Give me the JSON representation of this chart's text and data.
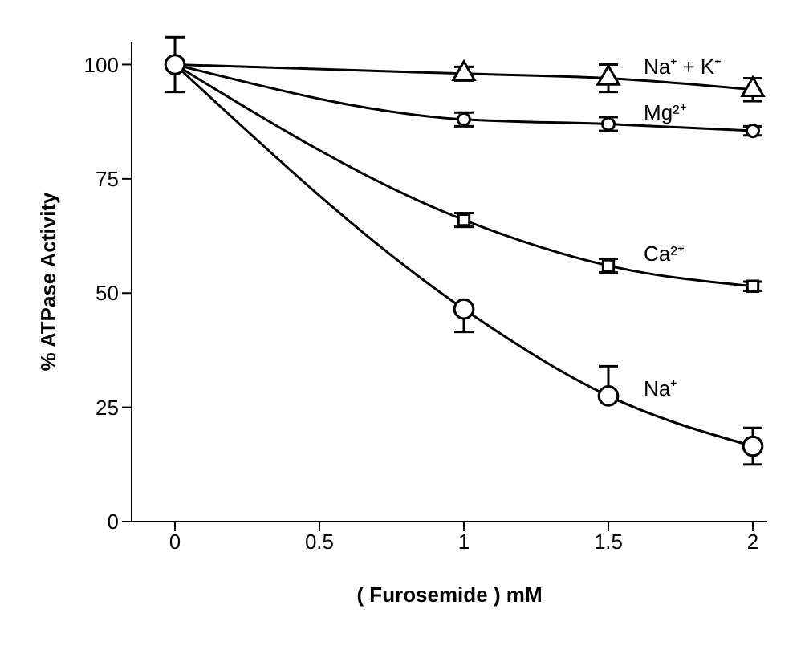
{
  "chart_data": {
    "type": "line",
    "xlabel": "( Furosemide ) mM",
    "ylabel": "% ATPase Activity",
    "x": [
      0,
      1,
      1.5,
      2
    ],
    "xlim": [
      -0.15,
      2.05
    ],
    "xticks": [
      0,
      0.5,
      1,
      1.5,
      2
    ],
    "ylim": [
      0,
      105
    ],
    "yticks": [
      0,
      25,
      50,
      75,
      100
    ],
    "grid": false,
    "line_style": "solid",
    "series": [
      {
        "name": "Na⁺",
        "color": "#000000",
        "marker": "circle",
        "values": [
          100,
          46.5,
          27.5,
          16.5
        ],
        "errors": [
          6,
          [
            41.5,
            46.5
          ],
          [
            27.5,
            34
          ],
          4
        ]
      },
      {
        "name": "Na⁺ + K⁺",
        "color": "#000000",
        "marker": "triangle",
        "values": [
          100,
          98,
          97,
          94.5
        ],
        "errors": [
          null,
          1.5,
          3,
          2.5
        ]
      },
      {
        "name": "Mg²⁺",
        "color": "#000000",
        "marker": "circle",
        "values": [
          100,
          88,
          87,
          85.5
        ],
        "errors": [
          null,
          1.5,
          1.5,
          1
        ]
      },
      {
        "name": "Ca²⁺",
        "color": "#000000",
        "marker": "square",
        "values": [
          100,
          66,
          56,
          51.5
        ],
        "errors": [
          null,
          1.5,
          1.5,
          1
        ]
      }
    ]
  }
}
